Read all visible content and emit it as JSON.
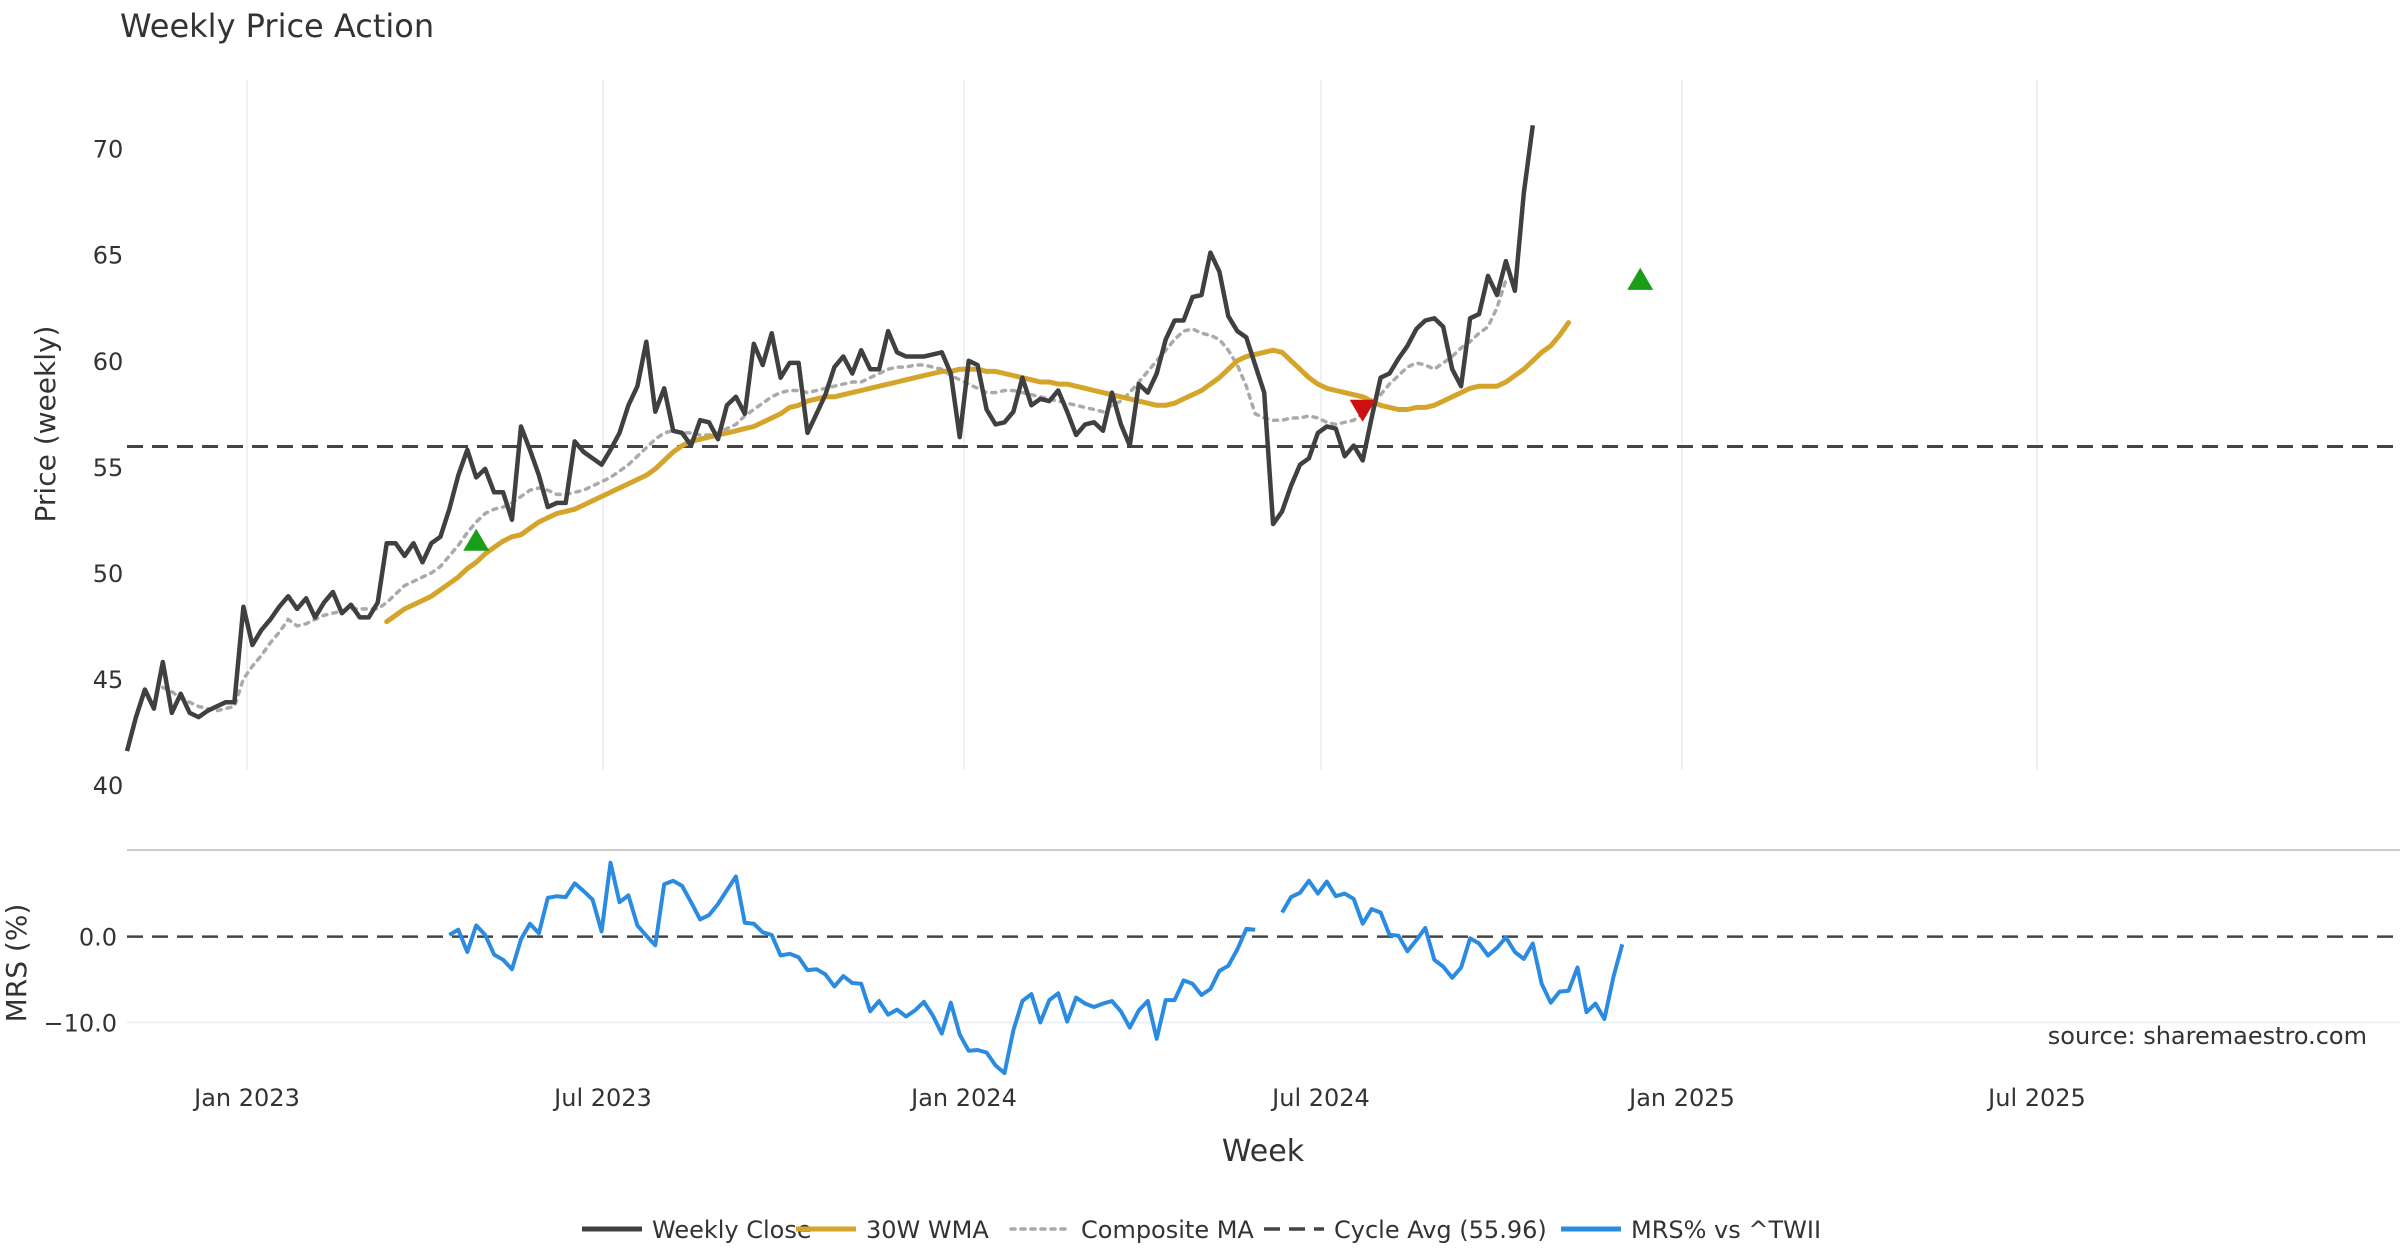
{
  "chart_data": {
    "type": "line",
    "title": "Weekly Price Action",
    "source": "source: sharemaestro.com",
    "xlabel": "Week",
    "x_ticks": [
      "Jan 2023",
      "Jul 2023",
      "Jan 2024",
      "Jul 2024",
      "Jan 2025",
      "Jul 2025"
    ],
    "price_panel": {
      "ylabel": "Price (weekly)",
      "ylim": [
        40,
        73
      ],
      "y_ticks": [
        "40",
        "45",
        "50",
        "55",
        "60",
        "65",
        "70"
      ],
      "cycle_avg": 55.96
    },
    "mrs_panel": {
      "ylabel": "MRS (%)",
      "ylim": [
        -16,
        9.5
      ],
      "y_ticks": [
        "0.0",
        "−10.0"
      ]
    },
    "legend": [
      {
        "label": "Weekly Close",
        "color": "#404040",
        "style": "solid"
      },
      {
        "label": "30W WMA",
        "color": "#d4a52a",
        "style": "solid"
      },
      {
        "label": "Composite MA",
        "color": "#aaaaaa",
        "style": "dotted"
      },
      {
        "label": "Cycle Avg (55.96)",
        "color": "#444444",
        "style": "dashed"
      },
      {
        "label": "MRS% vs ^TWII",
        "color": "#2a8be0",
        "style": "solid"
      }
    ],
    "series": [
      {
        "name": "Weekly Close",
        "color": "#404040",
        "values": [
          41.6,
          43.2,
          44.5,
          43.6,
          45.8,
          43.4,
          44.3,
          43.4,
          43.2,
          43.5,
          43.7,
          43.9,
          43.9,
          48.4,
          46.6,
          47.3,
          47.8,
          48.4,
          48.9,
          48.3,
          48.8,
          47.9,
          48.6,
          49.1,
          48.1,
          48.5,
          47.9,
          47.9,
          48.6,
          51.4,
          51.4,
          50.8,
          51.4,
          50.5,
          51.4,
          51.7,
          53.0,
          54.6,
          55.8,
          54.5,
          54.9,
          53.8,
          53.8,
          52.5,
          56.9,
          55.8,
          54.6,
          53.1,
          53.3,
          53.3,
          56.2,
          55.7,
          55.4,
          55.1,
          55.8,
          56.6,
          57.9,
          58.8,
          60.9,
          57.6,
          58.7,
          56.7,
          56.6,
          56.0,
          57.2,
          57.1,
          56.3,
          57.9,
          58.3,
          57.5,
          60.8,
          59.8,
          61.3,
          59.2,
          59.9,
          59.9,
          56.6,
          57.5,
          58.4,
          59.7,
          60.2,
          59.4,
          60.5,
          59.6,
          59.6,
          61.4,
          60.4,
          60.2,
          60.2,
          60.2,
          60.3,
          60.4,
          59.4,
          56.4,
          60.0,
          59.8,
          57.7,
          57.0,
          57.1,
          57.6,
          59.2,
          57.9,
          58.2,
          58.1,
          58.6,
          57.6,
          56.5,
          57.0,
          57.1,
          56.7,
          58.5,
          57.0,
          56.0,
          58.9,
          58.5,
          59.4,
          61.0,
          61.9,
          61.9,
          63.0,
          63.1,
          65.1,
          64.2,
          62.1,
          61.4,
          61.1,
          59.8,
          58.5,
          52.3,
          52.9,
          54.1,
          55.1,
          55.4,
          56.6,
          56.9,
          56.8,
          55.5,
          56.0,
          55.3,
          57.3,
          59.2,
          59.4,
          60.1,
          60.7,
          61.5,
          61.9,
          62.0,
          61.6,
          59.6,
          58.8,
          62.0,
          62.2,
          64.0,
          63.1,
          64.7,
          63.3,
          67.9,
          71.1
        ]
      },
      {
        "name": "30W WMA",
        "color": "#d4a52a",
        "start_index": 29,
        "values": [
          47.7,
          48.0,
          48.3,
          48.5,
          48.7,
          48.9,
          49.2,
          49.5,
          49.8,
          50.2,
          50.5,
          50.9,
          51.2,
          51.5,
          51.7,
          51.8,
          52.1,
          52.4,
          52.6,
          52.8,
          52.9,
          53.0,
          53.2,
          53.4,
          53.6,
          53.8,
          54.0,
          54.2,
          54.4,
          54.6,
          54.9,
          55.3,
          55.7,
          56.0,
          56.2,
          56.3,
          56.4,
          56.5,
          56.6,
          56.7,
          56.8,
          56.9,
          57.1,
          57.3,
          57.5,
          57.8,
          57.9,
          58.1,
          58.2,
          58.3,
          58.3,
          58.4,
          58.5,
          58.6,
          58.7,
          58.8,
          58.9,
          59.0,
          59.1,
          59.2,
          59.3,
          59.4,
          59.5,
          59.5,
          59.6,
          59.6,
          59.6,
          59.5,
          59.5,
          59.4,
          59.3,
          59.2,
          59.1,
          59.0,
          59.0,
          58.9,
          58.9,
          58.8,
          58.7,
          58.6,
          58.5,
          58.4,
          58.3,
          58.2,
          58.1,
          58.0,
          57.9,
          57.9,
          58.0,
          58.2,
          58.4,
          58.6,
          58.9,
          59.2,
          59.6,
          60.0,
          60.2,
          60.3,
          60.4,
          60.5,
          60.4,
          60.0,
          59.6,
          59.2,
          58.9,
          58.7,
          58.6,
          58.5,
          58.4,
          58.3,
          58.1,
          57.9,
          57.8,
          57.7,
          57.7,
          57.8,
          57.8,
          57.9,
          58.1,
          58.3,
          58.5,
          58.7,
          58.8,
          58.8,
          58.8,
          59.0,
          59.3,
          59.6,
          60.0,
          60.4,
          60.7,
          61.2,
          61.8
        ]
      },
      {
        "name": "Composite MA",
        "color": "#aaaaaa",
        "start_index": 4,
        "values": [
          44.6,
          44.4,
          44.1,
          43.9,
          43.7,
          43.6,
          43.5,
          43.6,
          43.7,
          45.0,
          45.6,
          46.1,
          46.7,
          47.2,
          47.8,
          47.5,
          47.6,
          47.8,
          48.0,
          48.1,
          48.2,
          48.3,
          48.3,
          48.3,
          48.3,
          48.6,
          49.0,
          49.4,
          49.6,
          49.8,
          50.0,
          50.3,
          50.8,
          51.3,
          51.9,
          52.4,
          52.8,
          53.0,
          53.1,
          53.3,
          53.6,
          53.9,
          54.0,
          53.9,
          53.7,
          53.7,
          53.8,
          53.9,
          54.1,
          54.3,
          54.5,
          54.8,
          55.1,
          55.5,
          55.9,
          56.3,
          56.6,
          56.7,
          56.6,
          56.6,
          56.5,
          56.5,
          56.6,
          56.8,
          57.0,
          57.4,
          57.7,
          58.0,
          58.3,
          58.5,
          58.6,
          58.6,
          58.5,
          58.6,
          58.7,
          58.8,
          58.9,
          59.0,
          59.0,
          59.2,
          59.4,
          59.6,
          59.7,
          59.7,
          59.8,
          59.8,
          59.7,
          59.6,
          59.3,
          59.1,
          58.9,
          58.7,
          58.5,
          58.5,
          58.6,
          58.6,
          58.5,
          58.4,
          58.3,
          58.2,
          58.1,
          58.0,
          57.9,
          57.8,
          57.7,
          57.6,
          57.9,
          58.1,
          58.5,
          59.0,
          59.5,
          60.0,
          60.5,
          61.0,
          61.4,
          61.5,
          61.3,
          61.2,
          61.0,
          60.5,
          59.8,
          58.8,
          57.5,
          57.3,
          57.2,
          57.2,
          57.3,
          57.3,
          57.4,
          57.3,
          57.1,
          57.0,
          57.1,
          57.2,
          57.5,
          57.9,
          58.4,
          58.9,
          59.3,
          59.7,
          59.9,
          59.8,
          59.6,
          59.9,
          60.2,
          60.6,
          60.9,
          61.3,
          61.6,
          62.5,
          63.8
        ]
      },
      {
        "name": "Cycle Avg (55.96)",
        "color": "#444444",
        "values": [
          55.96
        ]
      },
      {
        "name": "MRS% vs ^TWII",
        "color": "#2a8be0",
        "segments": [
          {
            "start_index": 36,
            "values": [
              0.2,
              0.8,
              -1.8,
              1.3,
              0.2,
              -2.1,
              -2.7,
              -3.8,
              -0.3,
              1.5,
              0.4,
              4.5,
              4.7,
              4.6,
              6.2,
              5.3,
              4.3,
              0.6,
              8.6,
              4.0,
              4.8,
              1.3,
              0.1,
              -1.0,
              6.1,
              6.5,
              5.9,
              4.0,
              2.0,
              2.5,
              3.8,
              5.4,
              7.0,
              1.6,
              1.5,
              0.5,
              0.2,
              -2.2,
              -2.0,
              -2.4,
              -3.9,
              -3.8,
              -4.4,
              -5.8,
              -4.6,
              -5.4,
              -5.5,
              -8.7,
              -7.5,
              -9.1,
              -8.5,
              -9.3,
              -8.6,
              -7.6,
              -9.2,
              -11.3,
              -7.7,
              -11.4,
              -13.3,
              -13.2,
              -13.5,
              -15.0,
              -15.9,
              -10.9,
              -7.5,
              -6.7,
              -10.0,
              -7.4,
              -6.6,
              -9.9,
              -7.1,
              -7.8,
              -8.2,
              -7.8,
              -7.5,
              -8.7,
              -10.6,
              -8.6,
              -7.5,
              -11.9,
              -7.4,
              -7.4,
              -5.1,
              -5.5,
              -6.8,
              -6.1,
              -4.0,
              -3.4,
              -1.5,
              0.9,
              0.8
            ]
          },
          {
            "start_index": 129,
            "values": [
              2.8,
              4.6,
              5.1,
              6.5,
              5.0,
              6.4,
              4.7,
              5.0,
              4.4,
              1.5,
              3.2,
              2.8,
              0.2,
              0.1,
              -1.7,
              -0.4,
              1.0,
              -2.7,
              -3.5,
              -4.8,
              -3.6,
              -0.2,
              -0.8,
              -2.2,
              -1.3,
              -0.1,
              -1.8,
              -2.6,
              -0.8,
              -5.5,
              -7.7,
              -6.4,
              -6.3,
              -3.6,
              -8.8,
              -7.8,
              -9.6,
              -4.7,
              -0.9
            ]
          }
        ]
      }
    ],
    "markers": [
      {
        "type": "buy",
        "index": 39,
        "value": 51.5,
        "color": "#1a9e1a"
      },
      {
        "type": "sell",
        "index": 138,
        "value": 57.7,
        "color": "#cc1111"
      },
      {
        "type": "buy",
        "index": 169,
        "value": 63.8,
        "color": "#1a9e1a"
      }
    ]
  }
}
